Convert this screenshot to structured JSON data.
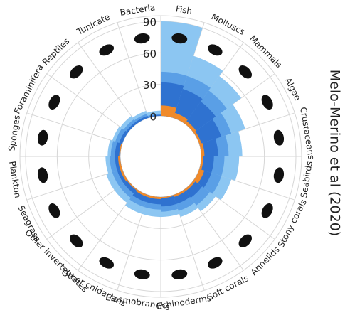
{
  "chart_data": {
    "type": "radial-bar",
    "categories": [
      "Fish",
      "Molluscs",
      "Mammals",
      "Algae",
      "Crustaceans",
      "Seabirds",
      "Stony corals",
      "Annelids",
      "Soft corals",
      "Echinoderms",
      "Elasmobranchs",
      "Other cnidarians",
      "Other invertebrates",
      "Seagrass",
      "Plankton",
      "Sponges",
      "Foraminifera",
      "Reptiles",
      "Tunicate",
      "Bacteria"
    ],
    "series": [
      {
        "color": "#8cc6f2",
        "values": [
          90,
          62,
          56,
          46,
          39,
          36,
          32,
          26,
          22,
          19,
          19,
          19,
          16,
          16,
          14,
          12,
          10,
          9,
          7,
          5
        ]
      },
      {
        "color": "#5a9fe6",
        "values": [
          42,
          42,
          39,
          32,
          26,
          22,
          22,
          19,
          16,
          14,
          12,
          12,
          10,
          10,
          10,
          9,
          7,
          5,
          4,
          2
        ]
      },
      {
        "color": "#2f72d0",
        "values": [
          32,
          29,
          26,
          22,
          16,
          12,
          12,
          10,
          9,
          9,
          7,
          7,
          5,
          5,
          5,
          5,
          3,
          2,
          2,
          1
        ]
      },
      {
        "color": "#f08a2a",
        "values": [
          10,
          5,
          3,
          2,
          3,
          2,
          5,
          2,
          2,
          1,
          2,
          2,
          1,
          2,
          2,
          1,
          0,
          0,
          0,
          0
        ]
      }
    ],
    "ylim": [
      0,
      90
    ],
    "yticks": [
      0,
      30,
      60,
      90
    ],
    "grid": true,
    "source": "Melo-Merino et al (2020)"
  }
}
